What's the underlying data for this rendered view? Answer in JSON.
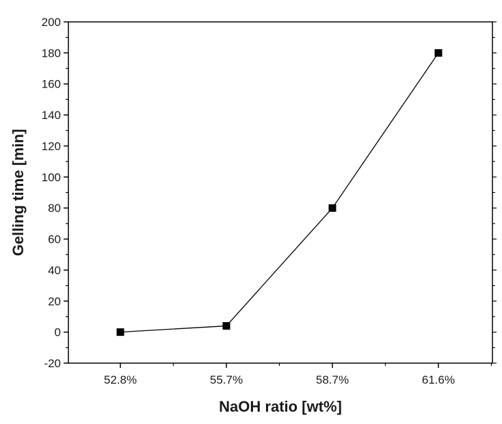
{
  "chart_data": {
    "type": "line",
    "title": "",
    "xlabel": "NaOH ratio [wt%]",
    "ylabel": "Gelling time [min]",
    "categories": [
      "52.8%",
      "55.7%",
      "58.7%",
      "61.6%"
    ],
    "series": [
      {
        "values": [
          0,
          4,
          80,
          180
        ]
      }
    ],
    "ylim": [
      -20,
      200
    ],
    "yticks": [
      -20,
      0,
      20,
      40,
      60,
      80,
      100,
      120,
      140,
      160,
      180,
      200
    ],
    "grid": false,
    "legend": "none",
    "colors": {
      "line": "#000000",
      "marker": "#000000",
      "frame": "#000000"
    },
    "marker": "square"
  }
}
